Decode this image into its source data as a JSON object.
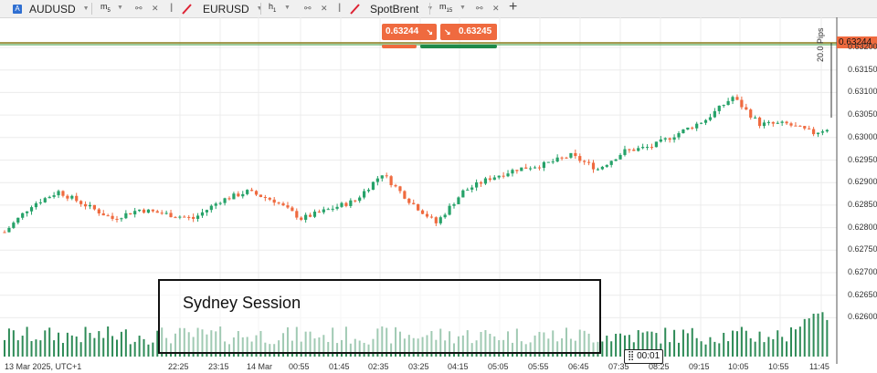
{
  "tabs": [
    {
      "symbol": "AUDUSD",
      "badge": "A",
      "timeframe": "m",
      "timeframe_sub": "5"
    },
    {
      "symbol": "EURUSD",
      "timeframe": "h",
      "timeframe_sub": "1"
    },
    {
      "symbol": "SpotBrent",
      "timeframe": "m",
      "timeframe_sub": "15"
    }
  ],
  "add_tab_label": "+",
  "trade": {
    "sell_price": "0.63244",
    "buy_price": "0.63245",
    "sell_arrow": "↘",
    "buy_arrow": "↘"
  },
  "current_price": "0.63244",
  "pips_label": "20.0 Pips",
  "session_label": "Sydney Session",
  "timer": "00:01",
  "colors": {
    "bull": "#26a269",
    "bear": "#ef6a3f",
    "price_line": "#8a7a1a",
    "volume": "#2e8b57"
  },
  "chart_data": {
    "type": "candlestick",
    "y_axis_ticks": [
      "0.63200",
      "0.63150",
      "0.63100",
      "0.63050",
      "0.63000",
      "0.62950",
      "0.62900",
      "0.62850",
      "0.62800",
      "0.62750",
      "0.62700",
      "0.62650",
      "0.62600"
    ],
    "x_axis_ticks": [
      "13 Mar 2025, UTC+1",
      "22:25",
      "23:15",
      "14 Mar",
      "00:55",
      "01:45",
      "02:35",
      "03:25",
      "04:15",
      "05:05",
      "05:55",
      "06:45",
      "07:35",
      "08:25",
      "09:15",
      "10:05",
      "10:55",
      "11:45"
    ],
    "ylim": [
      0.62575,
      0.63265
    ],
    "current_price": 0.63244,
    "close_path": [
      [
        0,
        0.6279
      ],
      [
        6,
        0.6285
      ],
      [
        12,
        0.6288
      ],
      [
        18,
        0.6285
      ],
      [
        24,
        0.6282
      ],
      [
        30,
        0.6284
      ],
      [
        36,
        0.6283
      ],
      [
        42,
        0.6282
      ],
      [
        48,
        0.6286
      ],
      [
        54,
        0.6288
      ],
      [
        60,
        0.6286
      ],
      [
        66,
        0.6282
      ],
      [
        72,
        0.6284
      ],
      [
        78,
        0.6286
      ],
      [
        84,
        0.6292
      ],
      [
        90,
        0.6286
      ],
      [
        96,
        0.6281
      ],
      [
        102,
        0.6288
      ],
      [
        108,
        0.6291
      ],
      [
        114,
        0.6293
      ],
      [
        120,
        0.6294
      ],
      [
        126,
        0.6296
      ],
      [
        132,
        0.6293
      ],
      [
        138,
        0.6297
      ],
      [
        144,
        0.6298
      ],
      [
        150,
        0.6301
      ],
      [
        156,
        0.6304
      ],
      [
        162,
        0.6309
      ],
      [
        168,
        0.6303
      ],
      [
        174,
        0.6303
      ],
      [
        180,
        0.6301
      ],
      [
        183,
        0.6302
      ]
    ],
    "volume_levels": [
      0.55,
      0.9,
      0.35
    ]
  }
}
